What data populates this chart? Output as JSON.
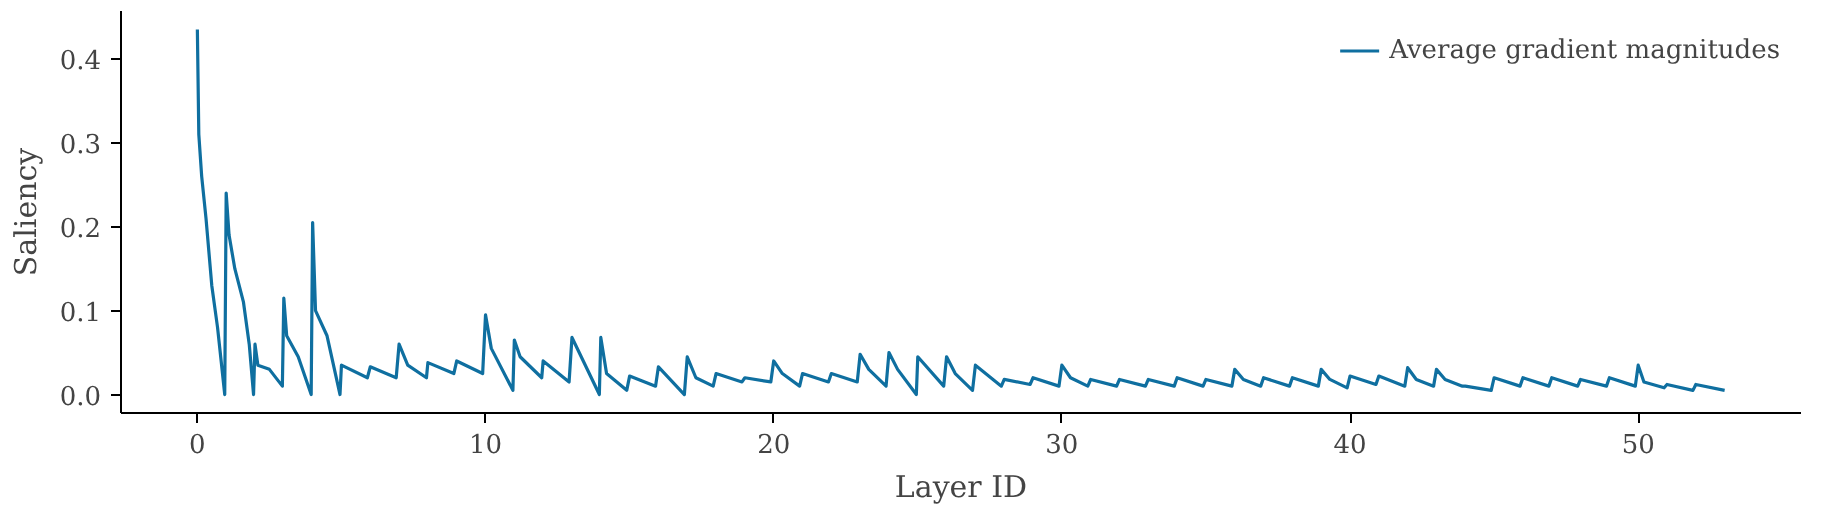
{
  "chart_data": {
    "type": "line",
    "xlabel": "Layer ID",
    "ylabel": "Saliency",
    "xlim": [
      -2.65,
      55.65
    ],
    "ylim": [
      -0.022,
      0.457
    ],
    "xticks": [
      0,
      10,
      20,
      30,
      40,
      50
    ],
    "yticks": [
      {
        "value": 0,
        "label": "0.0"
      },
      0.1,
      0.2,
      0.3,
      0.4
    ],
    "grid": false,
    "legend": "top right",
    "line_style": "solid",
    "series": [
      {
        "name": "Average gradient magnitudes",
        "color": "#0f6fa0",
        "x": [
          0,
          0.05,
          0.15,
          0.3,
          0.5,
          0.7,
          0.95,
          1,
          1.1,
          1.3,
          1.6,
          1.8,
          1.95,
          2,
          2.1,
          2.5,
          2.95,
          3,
          3.1,
          3.5,
          3.95,
          4,
          4.1,
          4.5,
          4.95,
          5,
          5.9,
          6,
          6.9,
          7,
          7.3,
          7.95,
          8,
          8.9,
          9,
          9.9,
          10,
          10.2,
          10.95,
          11,
          11.2,
          11.95,
          12,
          12.9,
          13,
          13.95,
          14,
          14.2,
          14.9,
          15,
          15.9,
          16,
          16.9,
          17,
          17.3,
          17.9,
          18,
          18.9,
          19,
          19.9,
          20,
          20.3,
          20.9,
          21,
          21.9,
          22,
          22.9,
          23,
          23.3,
          23.9,
          24,
          24.3,
          24.95,
          25,
          25.9,
          26,
          26.3,
          26.9,
          27,
          27.9,
          28,
          28.9,
          29,
          29.9,
          30,
          30.3,
          30.9,
          31,
          31.9,
          32,
          32.9,
          33,
          33.9,
          34,
          34.9,
          35,
          35.9,
          36,
          36.3,
          36.9,
          37,
          37.9,
          38,
          38.9,
          39,
          39.3,
          39.9,
          40,
          40.9,
          41,
          41.9,
          42,
          42.3,
          42.9,
          43,
          43.3,
          43.9,
          44,
          44.9,
          45,
          45.9,
          46,
          46.9,
          47,
          47.9,
          48,
          48.9,
          49,
          49.9,
          50,
          50.2,
          50.9,
          51,
          51.9,
          52,
          53
        ],
        "values": [
          0.435,
          0.31,
          0.26,
          0.21,
          0.13,
          0.08,
          0.0,
          0.24,
          0.19,
          0.15,
          0.11,
          0.06,
          0.0,
          0.06,
          0.035,
          0.03,
          0.01,
          0.115,
          0.07,
          0.045,
          0.0,
          0.205,
          0.1,
          0.07,
          0.0,
          0.035,
          0.02,
          0.033,
          0.02,
          0.06,
          0.035,
          0.02,
          0.038,
          0.025,
          0.04,
          0.025,
          0.095,
          0.055,
          0.005,
          0.065,
          0.045,
          0.02,
          0.04,
          0.015,
          0.068,
          0.0,
          0.068,
          0.025,
          0.005,
          0.022,
          0.01,
          0.033,
          0.0,
          0.045,
          0.02,
          0.01,
          0.025,
          0.015,
          0.02,
          0.015,
          0.04,
          0.025,
          0.01,
          0.025,
          0.015,
          0.025,
          0.015,
          0.048,
          0.03,
          0.01,
          0.05,
          0.03,
          0.0,
          0.045,
          0.01,
          0.045,
          0.025,
          0.005,
          0.035,
          0.01,
          0.018,
          0.012,
          0.02,
          0.01,
          0.035,
          0.02,
          0.01,
          0.018,
          0.01,
          0.018,
          0.01,
          0.018,
          0.01,
          0.02,
          0.01,
          0.018,
          0.01,
          0.03,
          0.018,
          0.01,
          0.02,
          0.01,
          0.02,
          0.01,
          0.03,
          0.018,
          0.008,
          0.022,
          0.012,
          0.022,
          0.01,
          0.032,
          0.018,
          0.01,
          0.03,
          0.018,
          0.01,
          0.01,
          0.005,
          0.02,
          0.01,
          0.02,
          0.01,
          0.02,
          0.01,
          0.018,
          0.01,
          0.02,
          0.01,
          0.035,
          0.015,
          0.008,
          0.012,
          0.005,
          0.012,
          0.005
        ]
      }
    ]
  }
}
